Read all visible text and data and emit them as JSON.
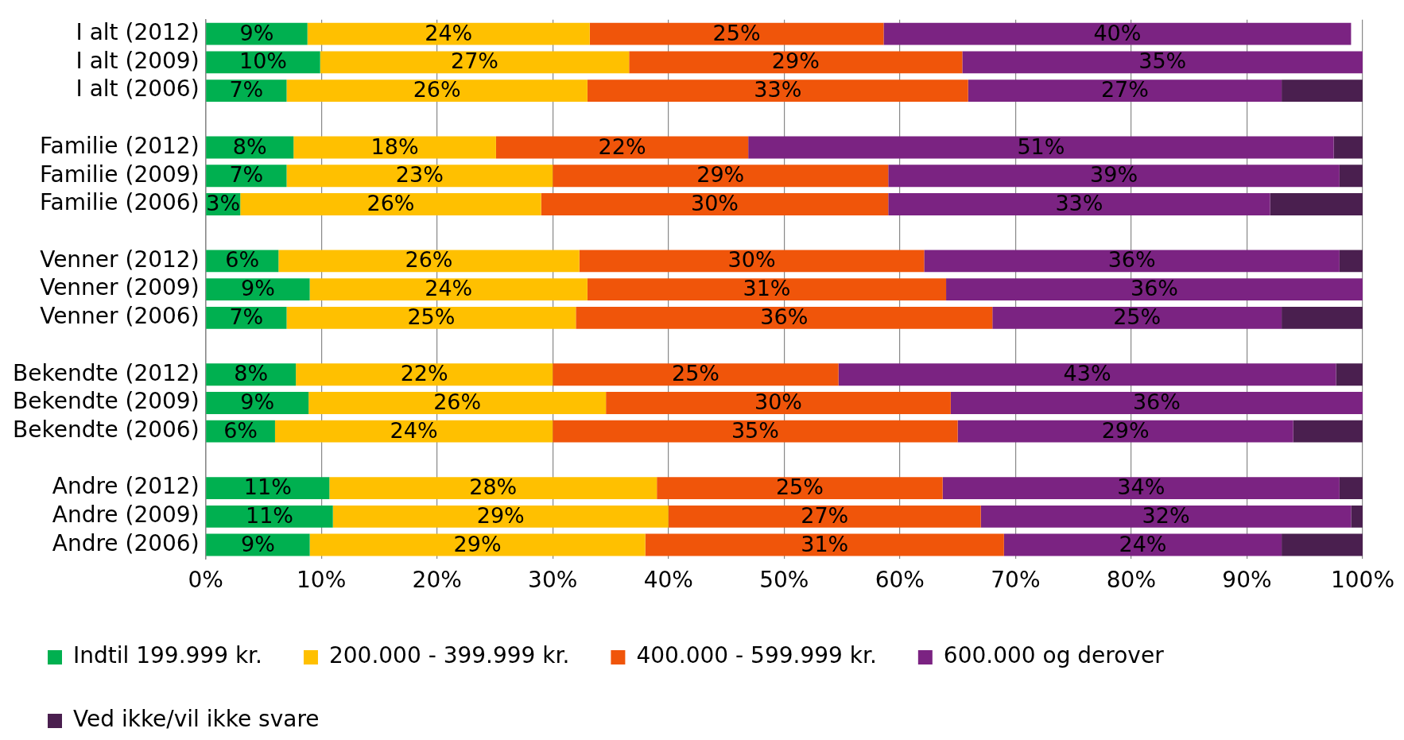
{
  "chart_data": {
    "type": "bar",
    "orientation": "horizontal",
    "stacked": true,
    "grid": "x",
    "legend": "bottom",
    "categories": [
      "I alt (2012)",
      "I alt (2009)",
      "I alt (2006)",
      null,
      "Familie (2012)",
      "Familie (2009)",
      "Familie (2006)",
      null,
      "Venner (2012)",
      "Venner (2009)",
      "Venner (2006)",
      null,
      "Bekendte (2012)",
      "Bekendte (2009)",
      "Bekendte (2006)",
      null,
      "Andre (2012)",
      "Andre (2009)",
      "Andre (2006)"
    ],
    "xlim": [
      0,
      100
    ],
    "xticks": [
      {
        "value": 0,
        "label": "0%"
      },
      {
        "value": 10,
        "label": "10%"
      },
      {
        "value": 20,
        "label": "20%"
      },
      {
        "value": 30,
        "label": "30%"
      },
      {
        "value": 40,
        "label": "40%"
      },
      {
        "value": 50,
        "label": "50%"
      },
      {
        "value": 60,
        "label": "60%"
      },
      {
        "value": 70,
        "label": "70%"
      },
      {
        "value": 80,
        "label": "80%"
      },
      {
        "value": 90,
        "label": "90%"
      },
      {
        "value": 100,
        "label": "100%"
      }
    ],
    "series": [
      {
        "name": "Indtil 199.999 kr.",
        "color": "#00b050",
        "values": [
          8.8,
          9.9,
          7,
          null,
          7.6,
          7,
          3,
          null,
          6.3,
          9,
          7,
          null,
          7.8,
          8.9,
          6,
          null,
          10.7,
          11,
          9
        ],
        "value_labels": [
          "9%",
          "10%",
          "7%",
          null,
          "8%",
          "7%",
          "3%",
          null,
          "6%",
          "9%",
          "7%",
          null,
          "8%",
          "9%",
          "6%",
          null,
          "11%",
          "11%",
          "9%"
        ]
      },
      {
        "name": "200.000 - 399.999 kr.",
        "color": "#ffc000",
        "values": [
          24.4,
          26.7,
          26,
          null,
          17.5,
          23,
          26,
          null,
          26,
          24,
          25,
          null,
          22.2,
          25.7,
          24,
          null,
          28.3,
          29,
          29
        ],
        "value_labels": [
          "24%",
          "27%",
          "26%",
          null,
          "18%",
          "23%",
          "26%",
          null,
          "26%",
          "24%",
          "25%",
          null,
          "22%",
          "26%",
          "24%",
          null,
          "28%",
          "29%",
          "29%"
        ]
      },
      {
        "name": "400.000 - 599.999 kr.",
        "color": "#f0550a",
        "values": [
          25.4,
          28.8,
          32.9,
          null,
          21.8,
          29,
          30,
          null,
          29.8,
          31,
          36,
          null,
          24.7,
          29.8,
          35,
          null,
          24.7,
          27,
          31
        ],
        "value_labels": [
          "25%",
          "29%",
          "33%",
          null,
          "22%",
          "29%",
          "30%",
          null,
          "30%",
          "31%",
          "36%",
          null,
          "25%",
          "30%",
          "35%",
          null,
          "25%",
          "27%",
          "31%"
        ]
      },
      {
        "name": "600.000 og derover",
        "color": "#7b2382",
        "values": [
          40.4,
          34.6,
          27.1,
          null,
          50.6,
          39,
          33,
          null,
          35.9,
          36,
          25,
          null,
          43,
          35.6,
          29,
          null,
          34.3,
          32,
          24
        ],
        "value_labels": [
          "40%",
          "35%",
          "27%",
          null,
          "51%",
          "39%",
          "33%",
          null,
          "36%",
          "36%",
          "25%",
          null,
          "43%",
          "36%",
          "29%",
          null,
          "34%",
          "32%",
          "24%"
        ]
      },
      {
        "name": "Ved ikke/vil ikke svare",
        "color": "#4a1f4f",
        "values": [
          null,
          null,
          7,
          null,
          2.5,
          2,
          8,
          null,
          2,
          null,
          7,
          null,
          2.3,
          null,
          6,
          null,
          2,
          1,
          7
        ]
      }
    ]
  }
}
